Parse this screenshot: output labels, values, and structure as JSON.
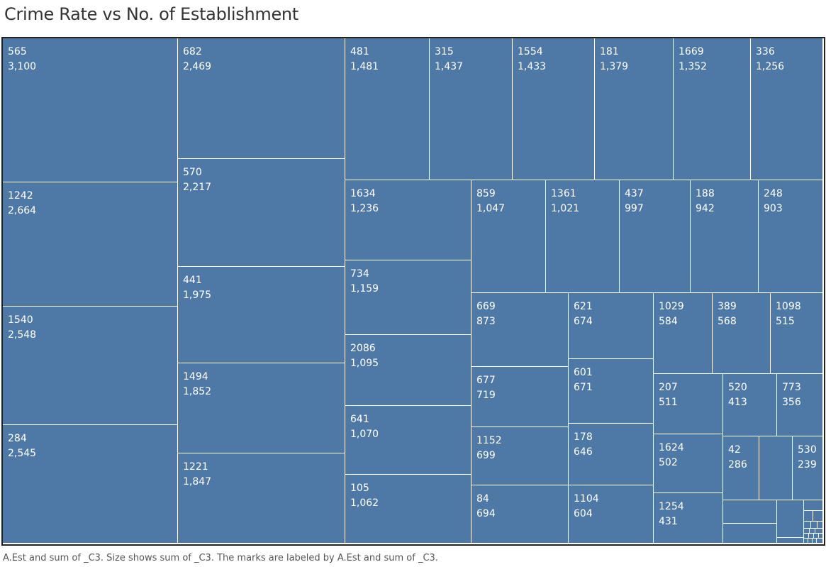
{
  "title": "Crime Rate vs No. of Establishment",
  "caption": "A.Est and sum of _C3.  Size shows sum of _C3.  The marks are labeled by A.Est and sum of _C3.",
  "colors": {
    "tile": "#4e79a7",
    "border": "#ffffff",
    "frame": "#222222"
  },
  "chart_data": {
    "type": "treemap",
    "title": "Crime Rate vs No. of Establishment",
    "size_measure": "sum of _C3",
    "label_fields": [
      "A.Est",
      "sum of _C3"
    ],
    "items": [
      {
        "est": "565",
        "value": 3100,
        "value_label": "3,100"
      },
      {
        "est": "1242",
        "value": 2664,
        "value_label": "2,664"
      },
      {
        "est": "1540",
        "value": 2548,
        "value_label": "2,548"
      },
      {
        "est": "284",
        "value": 2545,
        "value_label": "2,545"
      },
      {
        "est": "682",
        "value": 2469,
        "value_label": "2,469"
      },
      {
        "est": "570",
        "value": 2217,
        "value_label": "2,217"
      },
      {
        "est": "441",
        "value": 1975,
        "value_label": "1,975"
      },
      {
        "est": "1494",
        "value": 1852,
        "value_label": "1,852"
      },
      {
        "est": "1221",
        "value": 1847,
        "value_label": "1,847"
      },
      {
        "est": "481",
        "value": 1481,
        "value_label": "1,481"
      },
      {
        "est": "315",
        "value": 1437,
        "value_label": "1,437"
      },
      {
        "est": "1554",
        "value": 1433,
        "value_label": "1,433"
      },
      {
        "est": "181",
        "value": 1379,
        "value_label": "1,379"
      },
      {
        "est": "1669",
        "value": 1352,
        "value_label": "1,352"
      },
      {
        "est": "336",
        "value": 1256,
        "value_label": "1,256"
      },
      {
        "est": "1634",
        "value": 1236,
        "value_label": "1,236"
      },
      {
        "est": "734",
        "value": 1159,
        "value_label": "1,159"
      },
      {
        "est": "2086",
        "value": 1095,
        "value_label": "1,095"
      },
      {
        "est": "641",
        "value": 1070,
        "value_label": "1,070"
      },
      {
        "est": "105",
        "value": 1062,
        "value_label": "1,062"
      },
      {
        "est": "859",
        "value": 1047,
        "value_label": "1,047"
      },
      {
        "est": "1361",
        "value": 1021,
        "value_label": "1,021"
      },
      {
        "est": "437",
        "value": 997,
        "value_label": "997"
      },
      {
        "est": "188",
        "value": 942,
        "value_label": "942"
      },
      {
        "est": "248",
        "value": 903,
        "value_label": "903"
      },
      {
        "est": "669",
        "value": 873,
        "value_label": "873"
      },
      {
        "est": "677",
        "value": 719,
        "value_label": "719"
      },
      {
        "est": "1152",
        "value": 699,
        "value_label": "699"
      },
      {
        "est": "84",
        "value": 694,
        "value_label": "694"
      },
      {
        "est": "621",
        "value": 674,
        "value_label": "674"
      },
      {
        "est": "601",
        "value": 671,
        "value_label": "671"
      },
      {
        "est": "178",
        "value": 646,
        "value_label": "646"
      },
      {
        "est": "1104",
        "value": 604,
        "value_label": "604"
      },
      {
        "est": "1029",
        "value": 584,
        "value_label": "584"
      },
      {
        "est": "389",
        "value": 568,
        "value_label": "568"
      },
      {
        "est": "1098",
        "value": 515,
        "value_label": "515"
      },
      {
        "est": "207",
        "value": 511,
        "value_label": "511"
      },
      {
        "est": "1624",
        "value": 502,
        "value_label": "502"
      },
      {
        "est": "1254",
        "value": 431,
        "value_label": "431"
      },
      {
        "est": "520",
        "value": 413,
        "value_label": "413"
      },
      {
        "est": "773",
        "value": 356,
        "value_label": "356"
      },
      {
        "est": "42",
        "value": 286,
        "value_label": "286"
      },
      {
        "est": "530",
        "value": 239,
        "value_label": "239"
      }
    ]
  }
}
